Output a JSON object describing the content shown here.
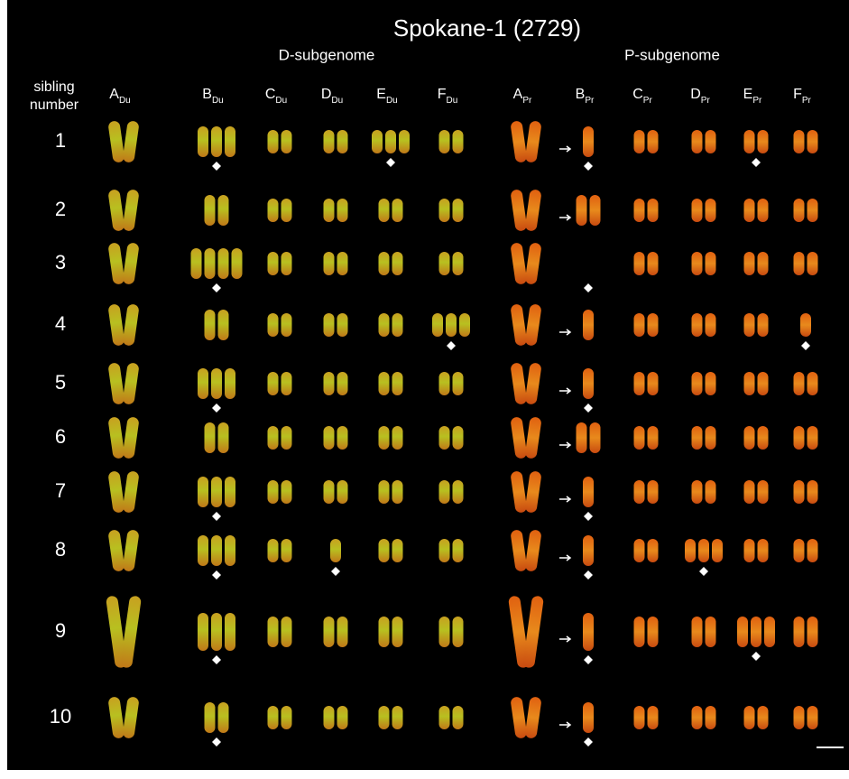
{
  "title": "Spokane-1  (2729)",
  "subgenomes": [
    "D-subgenome",
    "P-subgenome"
  ],
  "row_header": [
    "sibling",
    "number"
  ],
  "columns": [
    {
      "letter": "A",
      "sub": "Du"
    },
    {
      "letter": "B",
      "sub": "Du"
    },
    {
      "letter": "C",
      "sub": "Du"
    },
    {
      "letter": "D",
      "sub": "Du"
    },
    {
      "letter": "E",
      "sub": "Du"
    },
    {
      "letter": "F",
      "sub": "Du"
    },
    {
      "letter": "A",
      "sub": "Pr"
    },
    {
      "letter": "B",
      "sub": "Pr"
    },
    {
      "letter": "C",
      "sub": "Pr"
    },
    {
      "letter": "D",
      "sub": "Pr"
    },
    {
      "letter": "E",
      "sub": "Pr"
    },
    {
      "letter": "F",
      "sub": "Pr"
    }
  ],
  "rows": [
    "1",
    "2",
    "3",
    "4",
    "5",
    "6",
    "7",
    "8",
    "9",
    "10"
  ]
}
